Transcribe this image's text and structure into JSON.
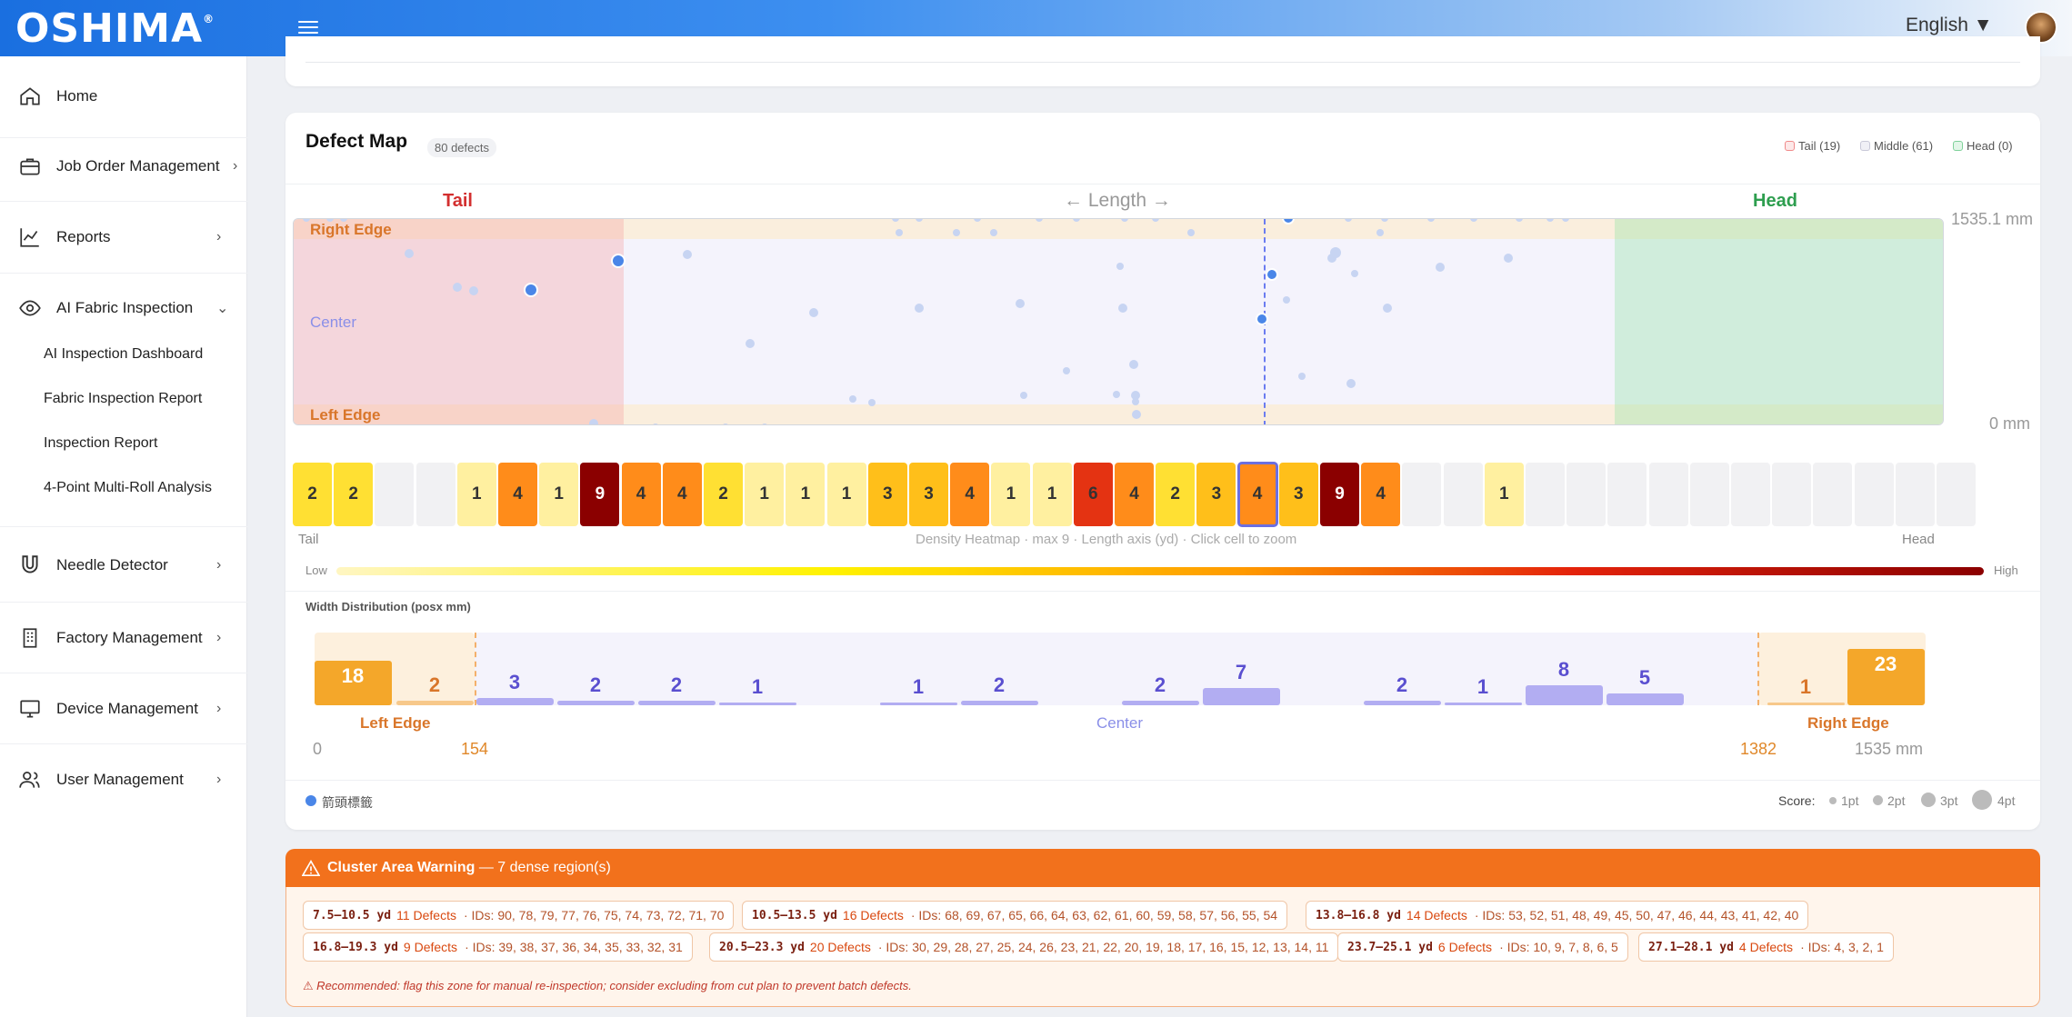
{
  "header": {
    "logo": "OSHIMA",
    "logo_mark": "®",
    "language": "English ▼"
  },
  "sidebar": {
    "items": [
      {
        "label": "Home",
        "icon": "home-icon"
      },
      {
        "label": "Job Order Management",
        "icon": "briefcase-icon"
      },
      {
        "label": "Reports",
        "icon": "chart-line-icon"
      },
      {
        "label": "AI Fabric Inspection",
        "icon": "eye-icon"
      },
      {
        "label": "Needle Detector",
        "icon": "magnet-icon"
      },
      {
        "label": "Factory Management",
        "icon": "building-icon"
      },
      {
        "label": "Device Management",
        "icon": "monitor-icon"
      },
      {
        "label": "User Management",
        "icon": "users-icon"
      }
    ],
    "subitems": [
      "AI Inspection Dashboard",
      "Fabric Inspection Report",
      "Inspection Report",
      "4-Point Multi-Roll Analysis"
    ]
  },
  "defect_map": {
    "title": "Defect Map",
    "count_badge": "80 defects",
    "legend": {
      "tail": "Tail (19)",
      "middle": "Middle (61)",
      "head": "Head (0)"
    },
    "tail_label": "Tail",
    "length_label": "← Length →",
    "head_label": "Head",
    "y_max": "1535.1 mm",
    "y_min": "0 mm",
    "zone_right_edge": "Right Edge",
    "zone_center": "Center",
    "zone_left_edge": "Left Edge",
    "colors": {
      "tail_zone": "#f7c9c9",
      "head_zone": "#c9efd3",
      "dot": "#4a86e8",
      "dot_faded": "#c7d4f2"
    }
  },
  "heatmap": {
    "cells": [
      "2",
      "2",
      "",
      "",
      "1",
      "4",
      "1",
      "9",
      "4",
      "4",
      "2",
      "1",
      "1",
      "1",
      "3",
      "3",
      "4",
      "1",
      "1",
      "6",
      "4",
      "2",
      "3",
      "4",
      "3",
      "9",
      "4",
      "",
      "",
      "1",
      "",
      "",
      "",
      "",
      "",
      "",
      "",
      "",
      "",
      "",
      ""
    ],
    "selected_index": 23,
    "tail": "Tail",
    "caption": "Density Heatmap · max 9 · Length axis (yd) · Click cell to zoom",
    "head": "Head",
    "low": "Low",
    "high": "High"
  },
  "width_dist": {
    "title": "Width Distribution (posx mm)",
    "bars": [
      "18",
      "2",
      "3",
      "2",
      "2",
      "1",
      "",
      "1",
      "2",
      "",
      "2",
      "7",
      "",
      "2",
      "1",
      "8",
      "5",
      "",
      "1",
      "23"
    ],
    "left_edge": "Left Edge",
    "center": "Center",
    "right_edge": "Right Edge",
    "tick_0": "0",
    "tick_154": "154",
    "tick_1382": "1382",
    "tick_1535": "1535 mm"
  },
  "bottom_legend": {
    "marker": "箭頭標籤",
    "score": "Score:",
    "pt1": "1pt",
    "pt2": "2pt",
    "pt3": "3pt",
    "pt4": "4pt"
  },
  "cluster": {
    "title": "Cluster Area Warning",
    "subtitle": "— 7 dense region(s)",
    "chips": [
      {
        "range": "7.5–10.5 yd",
        "count": "11 Defects",
        "ids": "· IDs: 90, 78, 79, 77, 76, 75, 74, 73, 72, 71, 70"
      },
      {
        "range": "10.5–13.5 yd",
        "count": "16 Defects",
        "ids": "· IDs: 68, 69, 67, 65, 66, 64, 63, 62, 61, 60, 59, 58, 57, 56, 55, 54"
      },
      {
        "range": "13.8–16.8 yd",
        "count": "14 Defects",
        "ids": "· IDs: 53, 52, 51, 48, 49, 45, 50, 47, 46, 44, 43, 41, 42, 40"
      },
      {
        "range": "16.8–19.3 yd",
        "count": "9 Defects",
        "ids": "· IDs: 39, 38, 37, 36, 34, 35, 33, 32, 31"
      },
      {
        "range": "20.5–23.3 yd",
        "count": "20 Defects",
        "ids": "· IDs: 30, 29, 28, 27, 25, 24, 26, 23, 21, 22, 20, 19, 18, 17, 16, 15, 12, 13, 14, 11"
      },
      {
        "range": "23.7–25.1 yd",
        "count": "6 Defects",
        "ids": "· IDs: 10, 9, 7, 8, 6, 5"
      },
      {
        "range": "27.1–28.1 yd",
        "count": "4 Defects",
        "ids": "· IDs: 4, 3, 2, 1"
      }
    ],
    "recommendation": "⚠ Recommended: flag this zone for manual re-inspection; consider excluding from cut plan to prevent batch defects."
  }
}
